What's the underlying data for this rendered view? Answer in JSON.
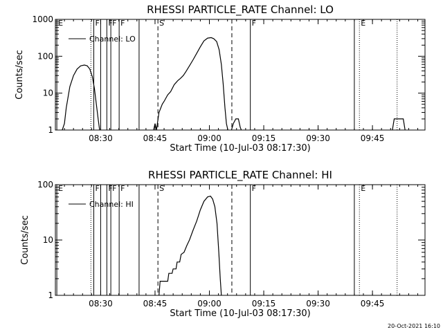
{
  "footer": {
    "timestamp": "20-Oct-2021 16:10"
  },
  "chart_data": [
    {
      "type": "line",
      "title": "RHESSI PARTICLE_RATE Channel: LO",
      "xlabel": "Start Time (10-Jul-03 08:17:30)",
      "ylabel": "Counts/sec",
      "yscale": "log",
      "ylim": [
        1,
        1000
      ],
      "xlim_minutes": [
        0,
        102
      ],
      "x_ticks": [
        {
          "t": 12.5,
          "label": "08:30"
        },
        {
          "t": 27.5,
          "label": "08:45"
        },
        {
          "t": 42.5,
          "label": "09:00"
        },
        {
          "t": 57.5,
          "label": "09:15"
        },
        {
          "t": 72.5,
          "label": "09:30"
        },
        {
          "t": 87.5,
          "label": "09:45"
        }
      ],
      "y_ticks": [
        {
          "v": 1,
          "label": "1"
        },
        {
          "v": 10,
          "label": "10"
        },
        {
          "v": 100,
          "label": "100"
        },
        {
          "v": 1000,
          "label": "1000"
        }
      ],
      "legend": {
        "label": "Channel: LO",
        "position": "top-left"
      },
      "markers": [
        {
          "t": 0.4,
          "style": "solid",
          "label": "E"
        },
        {
          "t": 9.8,
          "style": "dotted",
          "label": ""
        },
        {
          "t": 10.6,
          "style": "solid",
          "label": "F"
        },
        {
          "t": 12.5,
          "style": "solid",
          "label": ""
        },
        {
          "t": 14.2,
          "style": "solid",
          "label": "F"
        },
        {
          "t": 15.3,
          "style": "solid",
          "label": "F"
        },
        {
          "t": 17.6,
          "style": "solid",
          "label": "F"
        },
        {
          "t": 23.1,
          "style": "solid",
          "label": ""
        },
        {
          "t": 28.3,
          "style": "dashed",
          "label": "S"
        },
        {
          "t": 48.7,
          "style": "dashed",
          "label": ""
        },
        {
          "t": 53.8,
          "style": "solid",
          "label": "F"
        },
        {
          "t": 82.5,
          "style": "solid",
          "label": ""
        },
        {
          "t": 83.9,
          "style": "dotted",
          "label": "E"
        },
        {
          "t": 94.3,
          "style": "dotted",
          "label": ""
        }
      ],
      "segments": [
        [
          [
            1.9,
            1
          ],
          [
            2.5,
            1.5
          ],
          [
            3,
            4
          ],
          [
            4,
            15
          ],
          [
            5,
            30
          ],
          [
            6,
            45
          ],
          [
            7,
            55
          ],
          [
            8,
            58
          ],
          [
            8.8,
            55
          ],
          [
            9.5,
            45
          ],
          [
            10.2,
            28
          ],
          [
            10.8,
            13
          ],
          [
            11.3,
            5
          ],
          [
            11.8,
            2
          ],
          [
            12.2,
            1
          ]
        ],
        [
          [
            27.1,
            1
          ],
          [
            27.5,
            1.5
          ],
          [
            27.9,
            1
          ],
          [
            28.2,
            1.6
          ],
          [
            28.6,
            3
          ],
          [
            29.5,
            5
          ],
          [
            30,
            6
          ],
          [
            31,
            9
          ],
          [
            31.8,
            11
          ],
          [
            32.8,
            17
          ],
          [
            33.8,
            22
          ],
          [
            34.5,
            25
          ],
          [
            35.3,
            30
          ],
          [
            36,
            38
          ],
          [
            37,
            55
          ],
          [
            38,
            80
          ],
          [
            39,
            120
          ],
          [
            40,
            180
          ],
          [
            41,
            260
          ],
          [
            42,
            310
          ],
          [
            43,
            320
          ],
          [
            43.7,
            300
          ],
          [
            44.5,
            250
          ],
          [
            45.2,
            150
          ],
          [
            45.8,
            60
          ],
          [
            46.3,
            18
          ],
          [
            46.8,
            4
          ],
          [
            47.2,
            1.5
          ],
          [
            47.6,
            1
          ]
        ],
        [
          [
            48.6,
            1
          ],
          [
            49.1,
            1.5
          ],
          [
            49.8,
            2
          ],
          [
            50.5,
            2
          ],
          [
            51,
            1.2
          ],
          [
            51.3,
            1
          ]
        ],
        [
          [
            93,
            1
          ],
          [
            93.5,
            2
          ],
          [
            96,
            2
          ],
          [
            96.5,
            1
          ]
        ]
      ]
    },
    {
      "type": "line",
      "title": "RHESSI PARTICLE_RATE Channel: HI",
      "xlabel": "Start Time (10-Jul-03 08:17:30)",
      "ylabel": "Counts/sec",
      "yscale": "log",
      "ylim": [
        1,
        100
      ],
      "xlim_minutes": [
        0,
        102
      ],
      "x_ticks": [
        {
          "t": 12.5,
          "label": "08:30"
        },
        {
          "t": 27.5,
          "label": "08:45"
        },
        {
          "t": 42.5,
          "label": "09:00"
        },
        {
          "t": 57.5,
          "label": "09:15"
        },
        {
          "t": 72.5,
          "label": "09:30"
        },
        {
          "t": 87.5,
          "label": "09:45"
        }
      ],
      "y_ticks": [
        {
          "v": 1,
          "label": "1"
        },
        {
          "v": 10,
          "label": "10"
        },
        {
          "v": 100,
          "label": "100"
        }
      ],
      "legend": {
        "label": "Channel: HI",
        "position": "top-left"
      },
      "markers": [
        {
          "t": 0.4,
          "style": "solid",
          "label": "E"
        },
        {
          "t": 9.8,
          "style": "dotted",
          "label": ""
        },
        {
          "t": 10.6,
          "style": "solid",
          "label": "F"
        },
        {
          "t": 12.5,
          "style": "solid",
          "label": ""
        },
        {
          "t": 14.2,
          "style": "solid",
          "label": "F"
        },
        {
          "t": 15.3,
          "style": "solid",
          "label": "F"
        },
        {
          "t": 17.6,
          "style": "solid",
          "label": "F"
        },
        {
          "t": 23.1,
          "style": "solid",
          "label": ""
        },
        {
          "t": 28.3,
          "style": "dashed",
          "label": "S"
        },
        {
          "t": 48.7,
          "style": "dashed",
          "label": ""
        },
        {
          "t": 53.8,
          "style": "solid",
          "label": "F"
        },
        {
          "t": 82.5,
          "style": "solid",
          "label": ""
        },
        {
          "t": 83.9,
          "style": "dotted",
          "label": "E"
        },
        {
          "t": 94.3,
          "style": "dotted",
          "label": ""
        }
      ],
      "segments": [
        [
          [
            28.6,
            1
          ],
          [
            28.9,
            1.8
          ],
          [
            31,
            1.8
          ],
          [
            31.3,
            2.5
          ],
          [
            32.2,
            2.5
          ],
          [
            32.5,
            3
          ],
          [
            33.3,
            3
          ],
          [
            33.6,
            4
          ],
          [
            34.3,
            4
          ],
          [
            34.7,
            5.5
          ],
          [
            35.5,
            6
          ],
          [
            36.3,
            8
          ],
          [
            37,
            10
          ],
          [
            38,
            15
          ],
          [
            39,
            22
          ],
          [
            40,
            35
          ],
          [
            41,
            50
          ],
          [
            42,
            60
          ],
          [
            42.8,
            62
          ],
          [
            43.4,
            55
          ],
          [
            44,
            40
          ],
          [
            44.6,
            20
          ],
          [
            45.1,
            6
          ],
          [
            45.5,
            2
          ],
          [
            45.8,
            1
          ]
        ]
      ]
    }
  ]
}
